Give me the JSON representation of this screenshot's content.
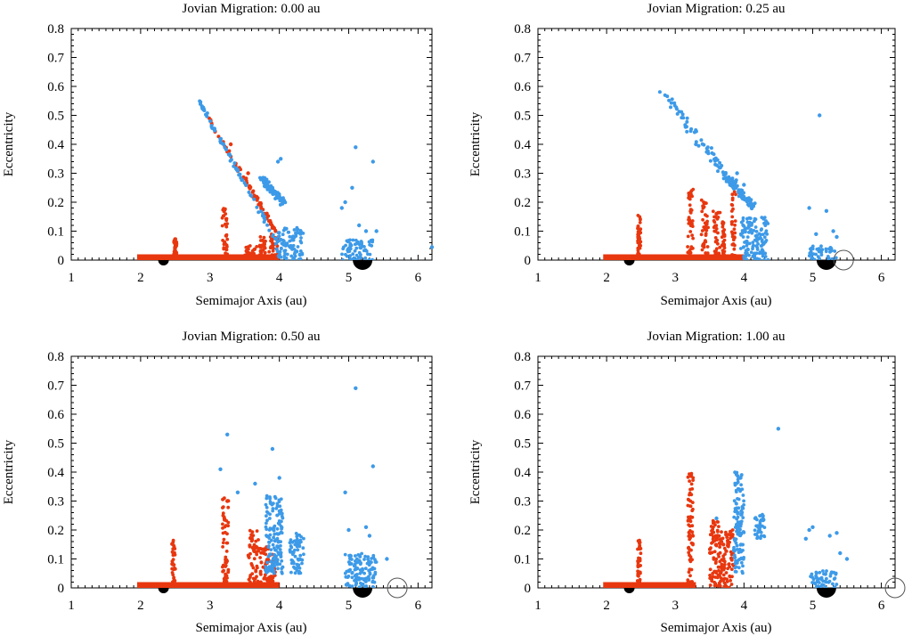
{
  "colors": {
    "background": "#ffffff",
    "axis": "#000000",
    "red_population": "#e8370f",
    "blue_population": "#3d9ae8",
    "planet_fill": "#000000",
    "original_orbit": "#555555"
  },
  "chart_data": [
    {
      "type": "scatter",
      "title": "Jovian Migration: 0.00 au",
      "xlabel": "Semimajor Axis (au)",
      "ylabel": "Eccentricity",
      "xlim": [
        1,
        6.2
      ],
      "ylim": [
        0,
        0.8
      ],
      "x_ticks": [
        "1",
        "2",
        "3",
        "4",
        "5",
        "6"
      ],
      "y_ticks": [
        "0",
        "0.1",
        "0.2",
        "0.3",
        "0.4",
        "0.5",
        "0.6",
        "0.7",
        "0.8"
      ],
      "grid": false,
      "original_jupiter_a": null,
      "planets": [
        {
          "a": 2.33,
          "size": "small"
        },
        {
          "a": 5.2,
          "size": "large"
        }
      ],
      "series": [
        {
          "name": "red",
          "color_key": "red_population",
          "base_band": [
            1.95,
            4.0,
            0.0,
            0.02
          ],
          "bands": [
            [
              2.48,
              2.52,
              0.02,
              0.075
            ],
            [
              3.17,
              3.25,
              0.02,
              0.19
            ],
            [
              3.5,
              3.7,
              0.0,
              0.05
            ],
            [
              3.7,
              3.8,
              0.0,
              0.09
            ],
            [
              3.85,
              3.98,
              0.0,
              0.09
            ]
          ],
          "lines": [
            [
              2.95,
              0.5,
              3.95,
              0.1,
              0.012
            ]
          ],
          "points": [
            [
              3.3,
              0.4
            ],
            [
              3.55,
              0.3
            ]
          ]
        },
        {
          "name": "blue",
          "color_key": "blue_population",
          "bands": [
            [
              3.95,
              4.35,
              0.0,
              0.11
            ],
            [
              4.9,
              5.35,
              0.0,
              0.07
            ]
          ],
          "lines": [
            [
              2.83,
              0.555,
              3.95,
              0.07,
              0.012
            ],
            [
              3.75,
              0.28,
              4.05,
              0.2,
              0.02
            ]
          ],
          "points": [
            [
              4.02,
              0.35
            ],
            [
              3.98,
              0.34
            ],
            [
              5.1,
              0.39
            ],
            [
              5.35,
              0.34
            ],
            [
              5.05,
              0.25
            ],
            [
              4.95,
              0.2
            ],
            [
              4.9,
              0.18
            ],
            [
              5.15,
              0.12
            ],
            [
              5.25,
              0.1
            ],
            [
              5.4,
              0.1
            ],
            [
              6.2,
              0.045
            ],
            [
              4.25,
              0.03
            ]
          ]
        }
      ]
    },
    {
      "type": "scatter",
      "title": "Jovian Migration: 0.25 au",
      "xlabel": "Semimajor Axis (au)",
      "ylabel": "Eccentricity",
      "xlim": [
        1,
        6.2
      ],
      "ylim": [
        0,
        0.8
      ],
      "x_ticks": [
        "1",
        "2",
        "3",
        "4",
        "5",
        "6"
      ],
      "y_ticks": [
        "0",
        "0.1",
        "0.2",
        "0.3",
        "0.4",
        "0.5",
        "0.6",
        "0.7",
        "0.8"
      ],
      "grid": false,
      "original_jupiter_a": 5.45,
      "planets": [
        {
          "a": 2.33,
          "size": "small"
        },
        {
          "a": 5.2,
          "size": "large"
        }
      ],
      "series": [
        {
          "name": "red",
          "color_key": "red_population",
          "base_band": [
            1.95,
            4.0,
            0.0,
            0.02
          ],
          "bands": [
            [
              2.45,
              2.5,
              0.02,
              0.15
            ],
            [
              3.18,
              3.26,
              0.02,
              0.24
            ],
            [
              3.38,
              3.48,
              0.0,
              0.2
            ],
            [
              3.55,
              3.65,
              0.0,
              0.17
            ],
            [
              3.68,
              3.72,
              0.0,
              0.14
            ],
            [
              3.82,
              3.88,
              0.0,
              0.23
            ]
          ],
          "lines": [],
          "points": [
            [
              3.85,
              0.26
            ],
            [
              3.6,
              0.16
            ]
          ]
        },
        {
          "name": "blue",
          "color_key": "blue_population",
          "bands": [
            [
              3.95,
              4.35,
              0.0,
              0.15
            ],
            [
              4.95,
              5.35,
              0.0,
              0.05
            ]
          ],
          "lines": [
            [
              2.82,
              0.575,
              4.0,
              0.22,
              0.03
            ],
            [
              3.7,
              0.3,
              4.15,
              0.18,
              0.02
            ]
          ],
          "points": [
            [
              3.15,
              0.46
            ],
            [
              3.3,
              0.4
            ],
            [
              5.1,
              0.5
            ],
            [
              4.95,
              0.18
            ],
            [
              5.2,
              0.17
            ],
            [
              4.0,
              0.26
            ],
            [
              3.95,
              0.24
            ],
            [
              5.05,
              0.09
            ],
            [
              5.3,
              0.1
            ],
            [
              5.35,
              0.08
            ],
            [
              3.9,
              0.3
            ]
          ]
        }
      ]
    },
    {
      "type": "scatter",
      "title": "Jovian Migration: 0.50 au",
      "xlabel": "Semimajor Axis (au)",
      "ylabel": "Eccentricity",
      "xlim": [
        1,
        6.2
      ],
      "ylim": [
        0,
        0.8
      ],
      "x_ticks": [
        "1",
        "2",
        "3",
        "4",
        "5",
        "6"
      ],
      "y_ticks": [
        "0",
        "0.1",
        "0.2",
        "0.3",
        "0.4",
        "0.5",
        "0.6",
        "0.7",
        "0.8"
      ],
      "grid": false,
      "original_jupiter_a": 5.7,
      "planets": [
        {
          "a": 2.33,
          "size": "small"
        },
        {
          "a": 5.2,
          "size": "large"
        }
      ],
      "series": [
        {
          "name": "red",
          "color_key": "red_population",
          "base_band": [
            1.95,
            4.0,
            0.0,
            0.02
          ],
          "bands": [
            [
              2.45,
              2.5,
              0.02,
              0.16
            ],
            [
              3.18,
              3.27,
              0.02,
              0.32
            ],
            [
              3.55,
              3.7,
              0.0,
              0.2
            ],
            [
              3.72,
              3.85,
              0.0,
              0.15
            ],
            [
              3.85,
              3.95,
              0.0,
              0.12
            ]
          ],
          "lines": [],
          "points": [
            [
              3.25,
              0.3
            ]
          ]
        },
        {
          "name": "blue",
          "color_key": "blue_population",
          "bands": [
            [
              3.8,
              4.05,
              0.05,
              0.32
            ],
            [
              4.15,
              4.35,
              0.05,
              0.19
            ],
            [
              4.95,
              5.4,
              0.0,
              0.12
            ]
          ],
          "lines": [],
          "points": [
            [
              3.25,
              0.53
            ],
            [
              3.9,
              0.48
            ],
            [
              5.1,
              0.69
            ],
            [
              5.35,
              0.42
            ],
            [
              3.15,
              0.41
            ],
            [
              3.4,
              0.33
            ],
            [
              3.65,
              0.36
            ],
            [
              4.0,
              0.38
            ],
            [
              4.95,
              0.33
            ],
            [
              5.0,
              0.2
            ],
            [
              5.25,
              0.21
            ],
            [
              5.3,
              0.18
            ],
            [
              5.55,
              0.1
            ]
          ]
        }
      ]
    },
    {
      "type": "scatter",
      "title": "Jovian Migration: 1.00 au",
      "xlabel": "Semimajor Axis (au)",
      "ylabel": "Eccentricity",
      "xlim": [
        1,
        6.2
      ],
      "ylim": [
        0,
        0.8
      ],
      "x_ticks": [
        "1",
        "2",
        "3",
        "4",
        "5",
        "6"
      ],
      "y_ticks": [
        "0",
        "0.1",
        "0.2",
        "0.3",
        "0.4",
        "0.5",
        "0.6",
        "0.7",
        "0.8"
      ],
      "grid": false,
      "original_jupiter_a": 6.2,
      "planets": [
        {
          "a": 2.33,
          "size": "small"
        },
        {
          "a": 5.2,
          "size": "large"
        }
      ],
      "series": [
        {
          "name": "red",
          "color_key": "red_population",
          "base_band": [
            1.95,
            3.3,
            0.0,
            0.02
          ],
          "bands": [
            [
              2.45,
              2.5,
              0.02,
              0.17
            ],
            [
              3.18,
              3.26,
              0.02,
              0.4
            ],
            [
              3.5,
              3.65,
              0.0,
              0.24
            ],
            [
              3.65,
              3.85,
              0.0,
              0.2
            ]
          ],
          "lines": [],
          "points": [
            [
              3.7,
              0.15
            ]
          ]
        },
        {
          "name": "blue",
          "color_key": "blue_population",
          "bands": [
            [
              3.85,
              4.0,
              0.05,
              0.4
            ],
            [
              4.15,
              4.3,
              0.17,
              0.25
            ],
            [
              4.95,
              5.35,
              0.0,
              0.06
            ]
          ],
          "lines": [],
          "points": [
            [
              4.5,
              0.55
            ],
            [
              3.6,
              0.24
            ],
            [
              3.95,
              0.38
            ],
            [
              4.9,
              0.17
            ],
            [
              4.95,
              0.2
            ],
            [
              5.0,
              0.21
            ],
            [
              5.25,
              0.18
            ],
            [
              5.35,
              0.19
            ],
            [
              5.4,
              0.12
            ],
            [
              5.5,
              0.1
            ]
          ]
        }
      ]
    }
  ]
}
